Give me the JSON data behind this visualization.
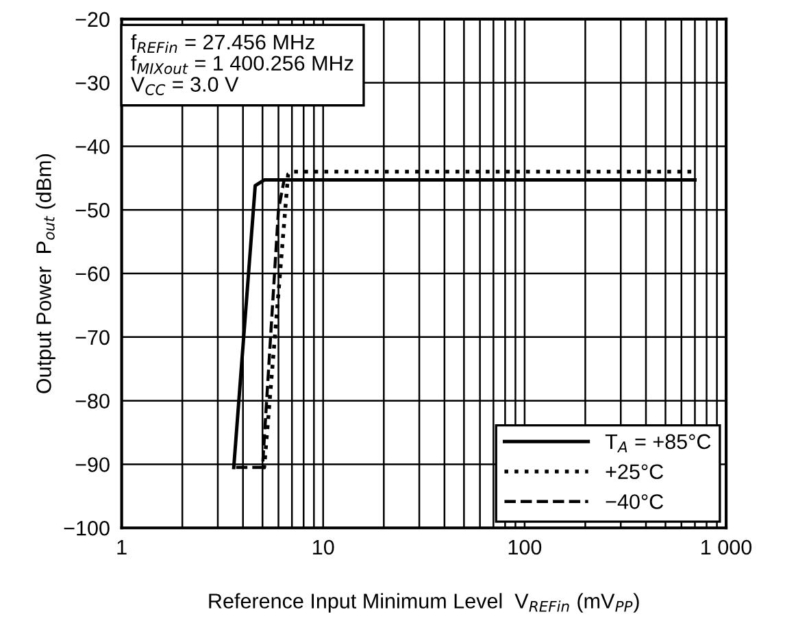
{
  "chart_data": {
    "type": "line",
    "xlabel": "Reference Input Minimum Level  V$_{REFin}$ (mV$_{PP}$)",
    "ylabel": "Output Power  P$_{out}$ (dBm)",
    "annotations": [
      "f$_{REFin}$ = 27.456 MHz\nf$_{MIXout}$ = 1 400.256 MHz\nV$_{CC}$ = 3.0 V"
    ],
    "log": "x",
    "xlim": [
      1,
      1000
    ],
    "ylim": [
      -100,
      -20
    ],
    "xticks": [
      1,
      10,
      100,
      {
        "value": 1000,
        "label": "1 000"
      }
    ],
    "yticks": [
      {
        "value": -100,
        "label": "−100"
      },
      {
        "value": -90,
        "label": "−90"
      },
      {
        "value": -80,
        "label": "−80"
      },
      {
        "value": -70,
        "label": "−70"
      },
      {
        "value": -60,
        "label": "−60"
      },
      {
        "value": -50,
        "label": "−50"
      },
      {
        "value": -40,
        "label": "−40"
      },
      {
        "value": -30,
        "label": "−30"
      },
      {
        "value": -20,
        "label": "−20"
      }
    ],
    "grid": true,
    "legend": "bottom right",
    "series": [
      {
        "name": "T$_{A}$ = +85°C",
        "color": "#000000",
        "line_style": "solid",
        "x": [
          3.6,
          4.6,
          5.1,
          700
        ],
        "values": [
          -90.5,
          -46.2,
          -45.3,
          -45.3
        ]
      },
      {
        "name": "+25°C",
        "color": "#000000",
        "line_style": "dotted",
        "x": [
          5.0,
          5.1,
          6.7,
          7.0,
          700
        ],
        "values": [
          -90.5,
          -90.5,
          -44.4,
          -44.0,
          -44.0
        ]
      },
      {
        "name": "−40°C",
        "color": "#000000",
        "line_style": "dashed",
        "x": [
          3.7,
          5.0,
          6.0,
          6.4,
          700
        ],
        "values": [
          -90.5,
          -90.5,
          -50,
          -45.3,
          -45.3
        ]
      }
    ]
  }
}
